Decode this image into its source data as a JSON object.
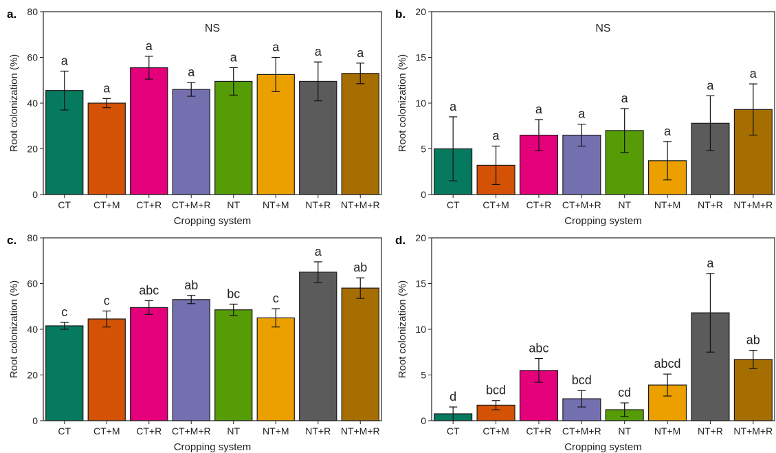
{
  "chart_data": [
    {
      "panel_label": "a.",
      "type": "bar",
      "title": "NS",
      "xlabel": "Cropping system",
      "ylabel": "Root colonization (%)",
      "ylim": [
        0,
        80
      ],
      "yticks": [
        0,
        20,
        40,
        60,
        80
      ],
      "categories": [
        "CT",
        "CT+M",
        "CT+R",
        "CT+M+R",
        "NT",
        "NT+M",
        "NT+R",
        "NT+M+R"
      ],
      "values": [
        45.5,
        40,
        55.5,
        46,
        49.5,
        52.5,
        49.5,
        53
      ],
      "errors": [
        8.5,
        2,
        5,
        3,
        6,
        7.5,
        8.5,
        4.5
      ],
      "letters": [
        "a",
        "a",
        "a",
        "a",
        "a",
        "a",
        "a",
        "a"
      ]
    },
    {
      "panel_label": "b.",
      "type": "bar",
      "title": "NS",
      "xlabel": "Cropping system",
      "ylabel": "Root colonization (%)",
      "ylim": [
        0,
        20
      ],
      "yticks": [
        0,
        5,
        10,
        15,
        20
      ],
      "categories": [
        "CT",
        "CT+M",
        "CT+R",
        "CT+M+R",
        "NT",
        "NT+M",
        "NT+R",
        "NT+M+R"
      ],
      "values": [
        5.0,
        3.2,
        6.5,
        6.5,
        7.0,
        3.7,
        7.8,
        9.3
      ],
      "errors": [
        3.5,
        2.1,
        1.7,
        1.2,
        2.4,
        2.1,
        3.0,
        2.8
      ],
      "letters": [
        "a",
        "a",
        "a",
        "a",
        "a",
        "a",
        "a",
        "a"
      ]
    },
    {
      "panel_label": "c.",
      "type": "bar",
      "title": "",
      "xlabel": "Cropping system",
      "ylabel": "Root colonization (%)",
      "ylim": [
        0,
        80
      ],
      "yticks": [
        0,
        20,
        40,
        60,
        80
      ],
      "categories": [
        "CT",
        "CT+M",
        "CT+R",
        "CT+M+R",
        "NT",
        "NT+M",
        "NT+R",
        "NT+M+R"
      ],
      "values": [
        41.5,
        44.5,
        49.5,
        53,
        48.5,
        45,
        65,
        58
      ],
      "errors": [
        1.5,
        3.5,
        3,
        1.8,
        2.5,
        4,
        4.5,
        4.5
      ],
      "letters": [
        "c",
        "c",
        "abc",
        "ab",
        "bc",
        "c",
        "a",
        "ab"
      ]
    },
    {
      "panel_label": "d.",
      "type": "bar",
      "title": "",
      "xlabel": "Cropping system",
      "ylabel": "Root colonization (%)",
      "ylim": [
        0,
        20
      ],
      "yticks": [
        0,
        5,
        10,
        15,
        20
      ],
      "categories": [
        "CT",
        "CT+M",
        "CT+R",
        "CT+M+R",
        "NT",
        "NT+M",
        "NT+R",
        "NT+M+R"
      ],
      "values": [
        0.75,
        1.7,
        5.5,
        2.4,
        1.2,
        3.9,
        11.8,
        6.7
      ],
      "errors": [
        0.75,
        0.5,
        1.3,
        0.9,
        0.75,
        1.2,
        4.3,
        1.0
      ],
      "letters": [
        "d",
        "bcd",
        "abc",
        "bcd",
        "cd",
        "abcd",
        "a",
        "ab"
      ]
    }
  ],
  "colors": [
    "#067a5f",
    "#d35205",
    "#e3007a",
    "#7470b0",
    "#559c07",
    "#eba000",
    "#5b5b5b",
    "#a66e00"
  ]
}
